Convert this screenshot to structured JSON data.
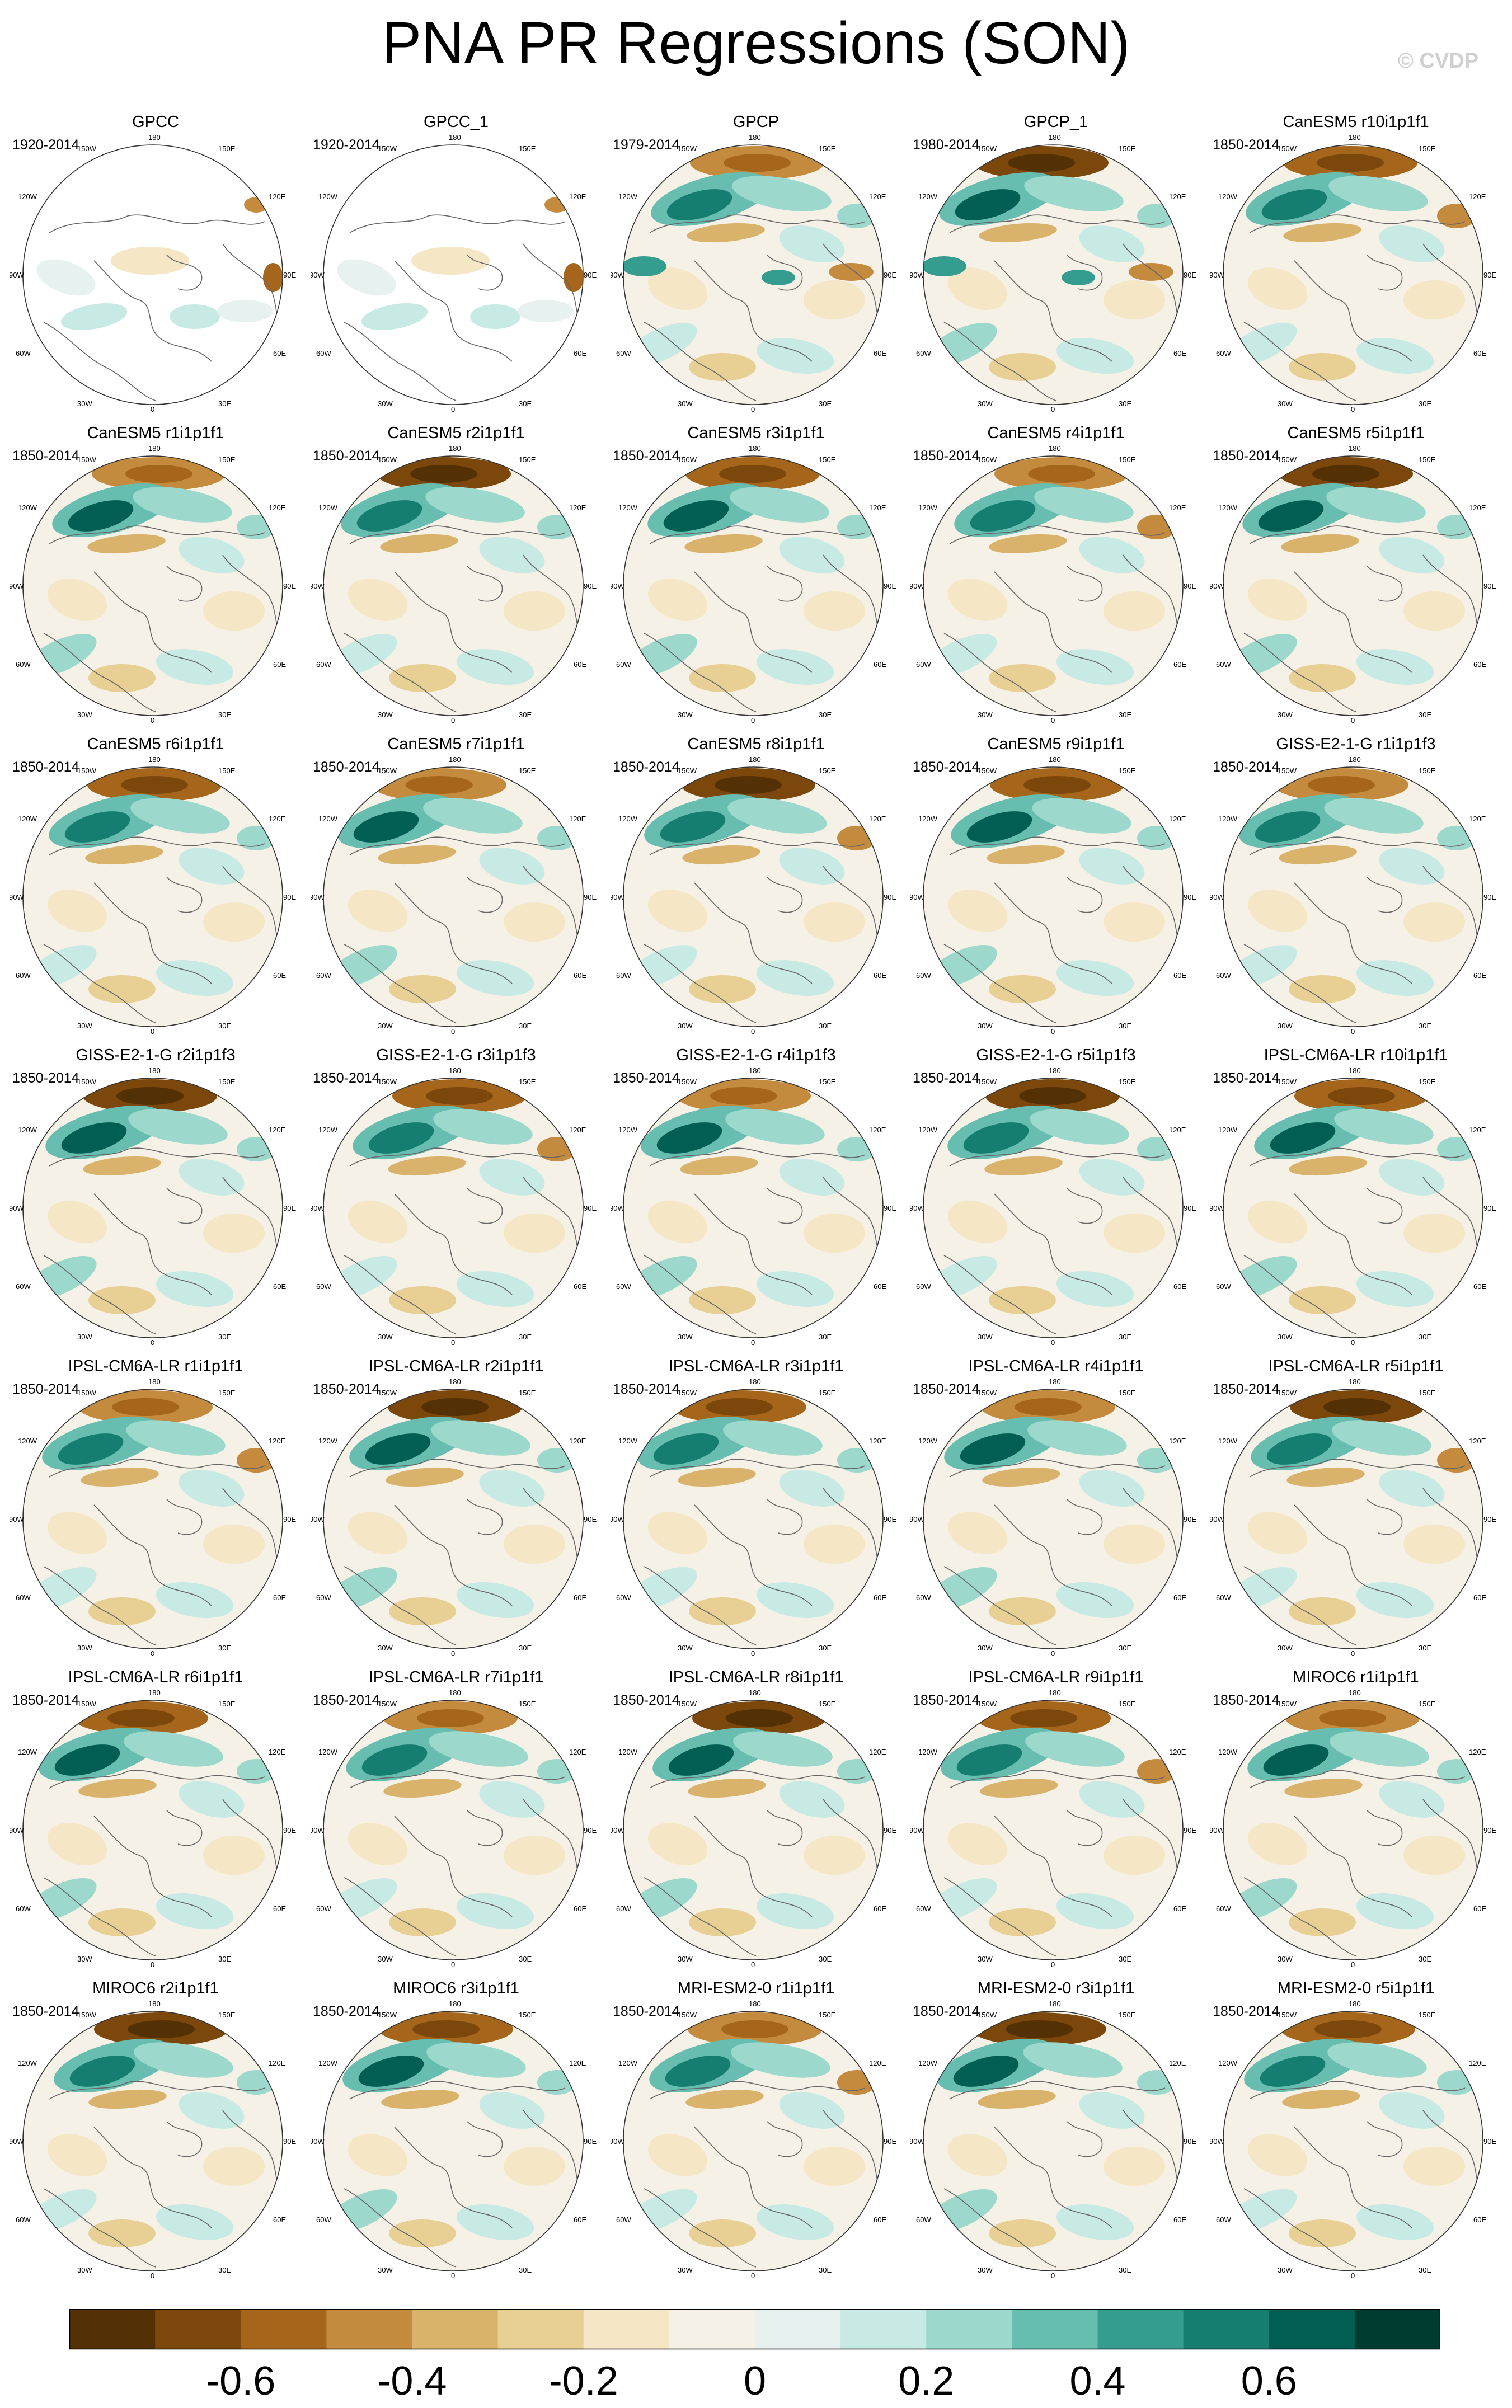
{
  "title": "PNA PR Regressions (SON)",
  "watermark": "© CVDP",
  "map_labels": {
    "lon_180": "180",
    "lon_150w": "150W",
    "lon_150e": "150E",
    "lon_120w": "120W",
    "lon_120e": "120E",
    "lon_90w": "90W",
    "lon_90e": "90E",
    "lon_60w": "60W",
    "lon_60e": "60E",
    "lon_30w": "30W",
    "lon_30e": "30E",
    "lon_0": "0"
  },
  "colorbar": {
    "colors": [
      "#543005",
      "#7c470b",
      "#a5661b",
      "#c48a3e",
      "#d9b36b",
      "#e8cf94",
      "#f5e7c6",
      "#f5f1e6",
      "#e7f1ef",
      "#c8eae4",
      "#9dd8cd",
      "#66bdb0",
      "#359c90",
      "#167d71",
      "#005e52",
      "#003c30"
    ],
    "tick_labels": [
      "-0.6",
      "-0.4",
      "-0.2",
      "0",
      "0.2",
      "0.4",
      "0.6"
    ]
  },
  "chart_data": {
    "type": "heatmap",
    "projection": "north polar stereographic",
    "variable": "PR regression onto PNA index, SON",
    "contour_levels": [
      -0.7,
      -0.6,
      -0.5,
      -0.4,
      -0.3,
      -0.2,
      -0.1,
      0,
      0.1,
      0.2,
      0.3,
      0.4,
      0.5,
      0.6,
      0.7
    ],
    "panels": [
      {
        "title": "GPCC",
        "years": "1920-2014"
      },
      {
        "title": "GPCC_1",
        "years": "1920-2014"
      },
      {
        "title": "GPCP",
        "years": "1979-2014"
      },
      {
        "title": "GPCP_1",
        "years": "1980-2014"
      },
      {
        "title": "CanESM5 r10i1p1f1",
        "years": "1850-2014"
      },
      {
        "title": "CanESM5 r1i1p1f1",
        "years": "1850-2014"
      },
      {
        "title": "CanESM5 r2i1p1f1",
        "years": "1850-2014"
      },
      {
        "title": "CanESM5 r3i1p1f1",
        "years": "1850-2014"
      },
      {
        "title": "CanESM5 r4i1p1f1",
        "years": "1850-2014"
      },
      {
        "title": "CanESM5 r5i1p1f1",
        "years": "1850-2014"
      },
      {
        "title": "CanESM5 r6i1p1f1",
        "years": "1850-2014"
      },
      {
        "title": "CanESM5 r7i1p1f1",
        "years": "1850-2014"
      },
      {
        "title": "CanESM5 r8i1p1f1",
        "years": "1850-2014"
      },
      {
        "title": "CanESM5 r9i1p1f1",
        "years": "1850-2014"
      },
      {
        "title": "GISS-E2-1-G r1i1p1f3",
        "years": "1850-2014"
      },
      {
        "title": "GISS-E2-1-G r2i1p1f3",
        "years": "1850-2014"
      },
      {
        "title": "GISS-E2-1-G r3i1p1f3",
        "years": "1850-2014"
      },
      {
        "title": "GISS-E2-1-G r4i1p1f3",
        "years": "1850-2014"
      },
      {
        "title": "GISS-E2-1-G r5i1p1f3",
        "years": "1850-2014"
      },
      {
        "title": "IPSL-CM6A-LR r10i1p1f1",
        "years": "1850-2014"
      },
      {
        "title": "IPSL-CM6A-LR r1i1p1f1",
        "years": "1850-2014"
      },
      {
        "title": "IPSL-CM6A-LR r2i1p1f1",
        "years": "1850-2014"
      },
      {
        "title": "IPSL-CM6A-LR r3i1p1f1",
        "years": "1850-2014"
      },
      {
        "title": "IPSL-CM6A-LR r4i1p1f1",
        "years": "1850-2014"
      },
      {
        "title": "IPSL-CM6A-LR r5i1p1f1",
        "years": "1850-2014"
      },
      {
        "title": "IPSL-CM6A-LR r6i1p1f1",
        "years": "1850-2014"
      },
      {
        "title": "IPSL-CM6A-LR r7i1p1f1",
        "years": "1850-2014"
      },
      {
        "title": "IPSL-CM6A-LR r8i1p1f1",
        "years": "1850-2014"
      },
      {
        "title": "IPSL-CM6A-LR r9i1p1f1",
        "years": "1850-2014"
      },
      {
        "title": "MIROC6 r1i1p1f1",
        "years": "1850-2014"
      },
      {
        "title": "MIROC6 r2i1p1f1",
        "years": "1850-2014"
      },
      {
        "title": "MIROC6 r3i1p1f1",
        "years": "1850-2014"
      },
      {
        "title": "MRI-ESM2-0 r1i1p1f1",
        "years": "1850-2014"
      },
      {
        "title": "MRI-ESM2-0 r3i1p1f1",
        "years": "1850-2014"
      },
      {
        "title": "MRI-ESM2-0 r5i1p1f1",
        "years": "1850-2014"
      }
    ]
  }
}
